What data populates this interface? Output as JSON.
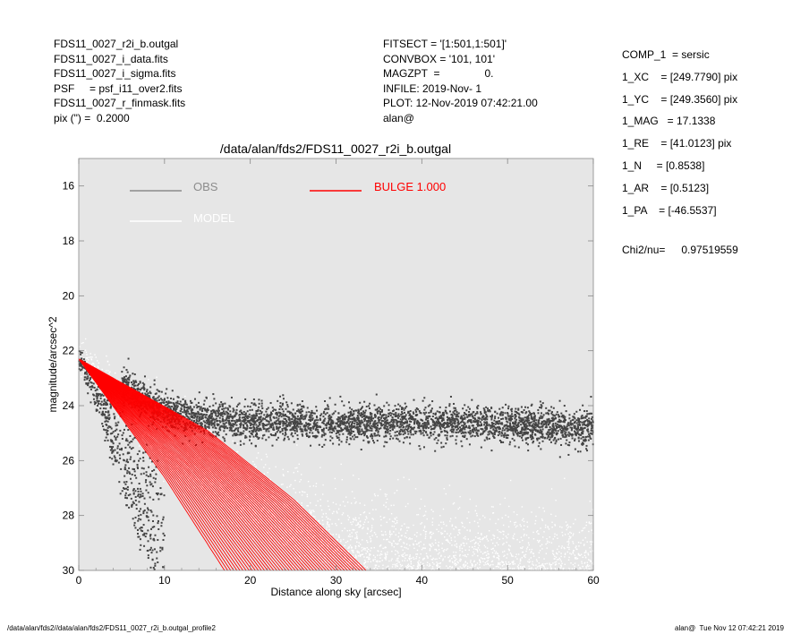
{
  "header_left": [
    "FDS11_0027_r2i_b.outgal",
    "FDS11_0027_i_data.fits",
    "FDS11_0027_i_sigma.fits",
    "PSF     = psf_i11_over2.fits",
    "FDS11_0027_r_finmask.fits",
    "pix (\") =  0.2000"
  ],
  "header_mid": [
    "FITSECT = '[1:501,1:501]'",
    "CONVBOX = '101, 101'",
    "MAGZPT  =               0.",
    "INFILE: 2019-Nov- 1",
    "PLOT: 12-Nov-2019 07:42:21.00",
    "alan@"
  ],
  "header_right": [
    "COMP_1  = sersic",
    "1_XC    = [249.7790] pix",
    "1_YC    = [249.3560] pix",
    "1_MAG   = 17.1338",
    "1_RE    = [41.0123] pix",
    "1_N     = [0.8538]",
    "1_AR    = [0.5123]",
    "1_PA    = [-46.5537]"
  ],
  "chi2": {
    "label": "Chi2/nu=",
    "value": "0.97519559"
  },
  "footer": {
    "left": "/data/alan/fds2//data/alan/fds2/FDS11_0027_r2i_b.outgal_profile2",
    "right": "alan@  Tue Nov 12 07:42:21 2019"
  },
  "chart_data": {
    "type": "scatter",
    "title": "/data/alan/fds2/FDS11_0027_r2i_b.outgal",
    "xlabel": "Distance along sky [arcsec]",
    "ylabel": "magnitude/arcsec^2",
    "xlim": [
      0,
      60
    ],
    "ylim": [
      30,
      15
    ],
    "y_inverted": true,
    "x_ticks": [
      0,
      10,
      20,
      30,
      40,
      50,
      60
    ],
    "y_ticks": [
      16,
      18,
      20,
      22,
      24,
      26,
      28,
      30
    ],
    "x_tick_labels": [
      "0",
      "10",
      "20",
      "30",
      "40",
      "50",
      "60"
    ],
    "y_tick_labels": [
      "16",
      "18",
      "20",
      "22",
      "24",
      "26",
      "28",
      "30"
    ],
    "background_color": "#e6e6e6",
    "grid": false,
    "legend_placement": "top-left inside",
    "series": [
      {
        "name": "OBS",
        "label": "OBS",
        "color": "#8c8c8c",
        "marker_color": "#444444",
        "description_points": [
          [
            0,
            22.2
          ],
          [
            5,
            23.3
          ],
          [
            10,
            24.2
          ],
          [
            15,
            24.5
          ],
          [
            20,
            24.6
          ],
          [
            30,
            24.7
          ],
          [
            40,
            24.6
          ],
          [
            50,
            24.7
          ],
          [
            60,
            24.8
          ]
        ]
      },
      {
        "name": "MODEL",
        "label": "MODEL",
        "color": "#ffffff",
        "marker_color": "#ffffff",
        "description_points": [
          [
            0,
            22.2
          ],
          [
            10,
            25.5
          ],
          [
            20,
            27.5
          ],
          [
            30,
            29.0
          ],
          [
            40,
            29.5
          ],
          [
            60,
            29.8
          ]
        ]
      },
      {
        "name": "BULGE",
        "label": "BULGE  1.000",
        "color": "#ff0000",
        "envelope_lower_edge": [
          [
            0,
            22.3
          ],
          [
            10,
            26.6
          ],
          [
            17,
            30.0
          ]
        ],
        "envelope_upper_edge": [
          [
            0,
            22.3
          ],
          [
            15,
            24.9
          ],
          [
            25,
            27.4
          ],
          [
            33.5,
            30.0
          ]
        ]
      }
    ]
  }
}
